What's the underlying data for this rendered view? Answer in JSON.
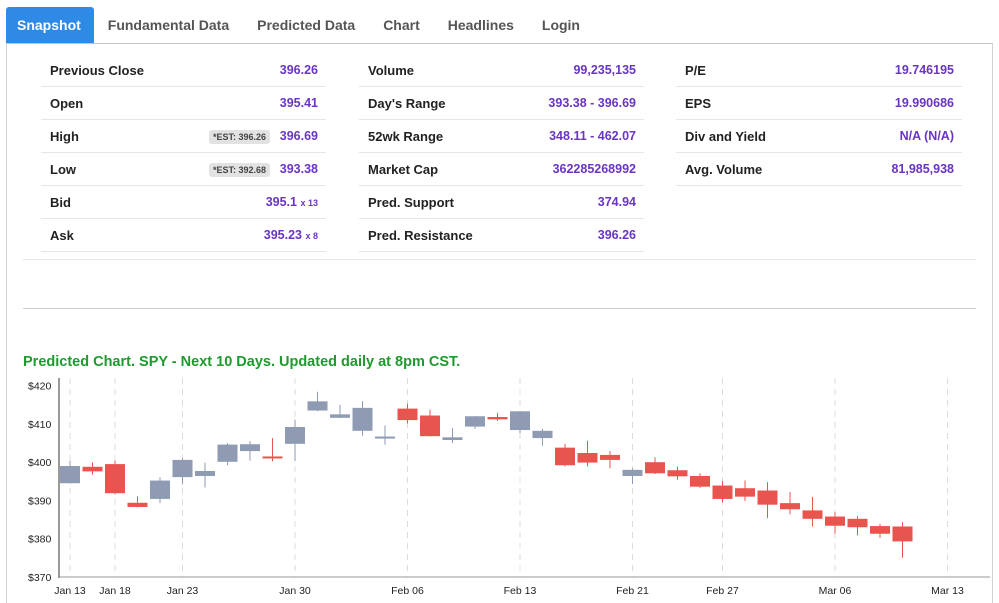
{
  "tabs": [
    {
      "label": "Snapshot",
      "active": true
    },
    {
      "label": "Fundamental Data",
      "active": false
    },
    {
      "label": "Predicted Data",
      "active": false
    },
    {
      "label": "Chart",
      "active": false
    },
    {
      "label": "Headlines",
      "active": false
    },
    {
      "label": "Login",
      "active": false
    }
  ],
  "stats": {
    "col1": [
      {
        "label": "Previous Close",
        "value": "396.26"
      },
      {
        "label": "Open",
        "value": "395.41"
      },
      {
        "label": "High",
        "value": "396.69",
        "est": "*EST: 396.26"
      },
      {
        "label": "Low",
        "value": "393.38",
        "est": "*EST: 392.68"
      },
      {
        "label": "Bid",
        "value": "395.1",
        "suffix": "x 13"
      },
      {
        "label": "Ask",
        "value": "395.23",
        "suffix": "x 8"
      }
    ],
    "col2": [
      {
        "label": "Volume",
        "value": "99,235,135"
      },
      {
        "label": "Day's Range",
        "value": "393.38 - 396.69"
      },
      {
        "label": "52wk Range",
        "value": "348.11 - 462.07"
      },
      {
        "label": "Market Cap",
        "value": "362285268992"
      },
      {
        "label": "Pred. Support",
        "value": "374.94"
      },
      {
        "label": "Pred. Resistance",
        "value": "396.26"
      }
    ],
    "col3": [
      {
        "label": "P/E",
        "value": "19.746195"
      },
      {
        "label": "EPS",
        "value": "19.990686"
      },
      {
        "label": "Div and Yield",
        "value": "N/A (N/A)"
      },
      {
        "label": "Avg. Volume",
        "value": "81,985,938"
      }
    ]
  },
  "chart_title": "Predicted Chart. SPY - Next 10 Days. Updated daily at 8pm CST.",
  "chart_data": {
    "type": "candlestick",
    "title": "Predicted Chart. SPY - Next 10 Days. Updated daily at 8pm CST.",
    "ylim": [
      370,
      422
    ],
    "y_ticks": [
      "$370",
      "$380",
      "$390",
      "$400",
      "$410",
      "$420"
    ],
    "y_tick_values": [
      370,
      380,
      390,
      400,
      410,
      420
    ],
    "x_ticks": [
      "Jan 13",
      "Jan 18",
      "Jan 23",
      "Jan 30",
      "Feb 06",
      "Feb 13",
      "Feb 21",
      "Feb 27",
      "Mar 06",
      "Mar 13"
    ],
    "x_tick_index": [
      0,
      2,
      5,
      10,
      15,
      20,
      25,
      29,
      34,
      39
    ],
    "colors": {
      "up": "#8e9bb3",
      "down": "#e8544e",
      "up_pred": "#d3d8e1",
      "down_pred": "#f0bfbf",
      "down_future": "#f23a33",
      "grid": "#dddddd",
      "axis": "#333333"
    },
    "candles": [
      {
        "o": 394.5,
        "h": 400.3,
        "l": 394.4,
        "c": 399.0,
        "k": "up"
      },
      {
        "o": 398.8,
        "h": 400.0,
        "l": 396.8,
        "c": 397.6,
        "k": "down"
      },
      {
        "o": 399.5,
        "h": 400.4,
        "l": 391.6,
        "c": 391.9,
        "k": "down"
      },
      {
        "o": 389.4,
        "h": 391.1,
        "l": 388.2,
        "c": 388.3,
        "k": "down"
      },
      {
        "o": 390.4,
        "h": 396.1,
        "l": 389.3,
        "c": 395.2,
        "k": "up"
      },
      {
        "o": 396.1,
        "h": 401.0,
        "l": 394.2,
        "c": 400.6,
        "k": "up"
      },
      {
        "o": 396.4,
        "h": 399.9,
        "l": 393.4,
        "c": 397.7,
        "k": "up"
      },
      {
        "o": 400.1,
        "h": 405.0,
        "l": 399.2,
        "c": 404.6,
        "k": "up"
      },
      {
        "o": 402.9,
        "h": 405.5,
        "l": 400.4,
        "c": 404.7,
        "k": "up"
      },
      {
        "o": 401.3,
        "h": 406.3,
        "l": 400.2,
        "c": 401.5,
        "k": "down"
      },
      {
        "o": 404.8,
        "h": 411.1,
        "l": 400.3,
        "c": 409.2,
        "k": "up"
      },
      {
        "o": 413.5,
        "h": 418.4,
        "l": 413.3,
        "c": 415.9,
        "k": "up"
      },
      {
        "o": 412.5,
        "h": 415.0,
        "l": 411.5,
        "c": 411.6,
        "k": "up"
      },
      {
        "o": 414.2,
        "h": 416.0,
        "l": 406.9,
        "c": 408.2,
        "k": "up"
      },
      {
        "o": 406.3,
        "h": 409.6,
        "l": 404.6,
        "c": 406.7,
        "k": "up"
      },
      {
        "o": 414.0,
        "h": 415.3,
        "l": 410.1,
        "c": 411.0,
        "k": "down"
      },
      {
        "o": 412.2,
        "h": 413.7,
        "l": 406.7,
        "c": 406.8,
        "k": "down"
      },
      {
        "o": 406.5,
        "h": 408.9,
        "l": 405.0,
        "c": 405.8,
        "k": "up"
      },
      {
        "o": 409.3,
        "h": 412.1,
        "l": 408.7,
        "c": 412.0,
        "k": "up"
      },
      {
        "o": 411.8,
        "h": 412.9,
        "l": 410.8,
        "c": 411.2,
        "k": "down"
      },
      {
        "o": 408.4,
        "h": 413.4,
        "l": 407.6,
        "c": 413.3,
        "k": "up"
      },
      {
        "o": 406.3,
        "h": 408.7,
        "l": 404.3,
        "c": 408.2,
        "k": "up"
      },
      {
        "o": 403.8,
        "h": 404.8,
        "l": 398.9,
        "c": 399.2,
        "k": "down"
      },
      {
        "o": 402.4,
        "h": 405.6,
        "l": 398.9,
        "c": 399.9,
        "k": "down"
      },
      {
        "o": 401.9,
        "h": 402.9,
        "l": 398.4,
        "c": 400.6,
        "k": "down"
      },
      {
        "o": 396.4,
        "h": 398.4,
        "l": 394.3,
        "c": 398.0,
        "k": "up"
      },
      {
        "o": 400.0,
        "h": 401.3,
        "l": 396.9,
        "c": 397.1,
        "k": "down"
      },
      {
        "o": 397.9,
        "h": 398.8,
        "l": 395.4,
        "c": 396.3,
        "k": "down"
      },
      {
        "o": 396.4,
        "h": 397.1,
        "l": 393.3,
        "c": 393.6,
        "k": "down"
      },
      {
        "o": 393.9,
        "h": 395.1,
        "l": 389.5,
        "c": 390.4,
        "k": "down"
      },
      {
        "o": 393.2,
        "h": 395.2,
        "l": 389.9,
        "c": 391.0,
        "k": "down"
      },
      {
        "o": 392.6,
        "h": 394.8,
        "l": 385.4,
        "c": 388.9,
        "k": "down"
      },
      {
        "o": 389.3,
        "h": 392.2,
        "l": 386.4,
        "c": 387.7,
        "k": "down"
      },
      {
        "o": 387.4,
        "h": 390.9,
        "l": 383.2,
        "c": 385.2,
        "k": "down"
      },
      {
        "o": 385.8,
        "h": 387.0,
        "l": 381.3,
        "c": 383.4,
        "k": "down"
      },
      {
        "o": 385.2,
        "h": 385.9,
        "l": 380.9,
        "c": 383.0,
        "k": "down"
      },
      {
        "o": 383.3,
        "h": 383.9,
        "l": 380.2,
        "c": 381.3,
        "k": "down"
      },
      {
        "o": 383.2,
        "h": 384.3,
        "l": 375.0,
        "c": 379.3,
        "k": "down"
      }
    ]
  }
}
